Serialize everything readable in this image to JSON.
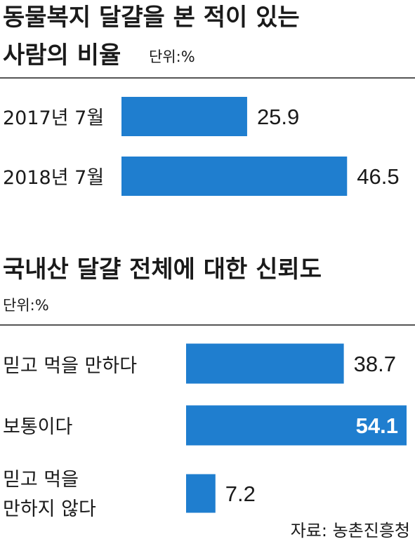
{
  "colors": {
    "bar": "#1f7ecf",
    "rule": "#555555",
    "text": "#1a1a1a"
  },
  "chart_data": [
    {
      "type": "bar",
      "orientation": "horizontal",
      "title_line1": "동물복지 달걀을 본 적이 있는",
      "title_line2": "사람의 비율",
      "unit": "단위:%",
      "categories": [
        "2017년 7월",
        "2018년 7월"
      ],
      "values": [
        25.9,
        46.5
      ],
      "value_labels": [
        "25.9",
        "46.5"
      ],
      "xlim": [
        0,
        55
      ]
    },
    {
      "type": "bar",
      "orientation": "horizontal",
      "title_line1": "국내산 달걀 전체에 대한 신뢰도",
      "unit": "단위:%",
      "categories": [
        [
          "믿고 먹을 만하다"
        ],
        [
          "보통이다"
        ],
        [
          "믿고 먹을",
          "만하지 않다"
        ]
      ],
      "values": [
        38.7,
        54.1,
        7.2
      ],
      "value_labels": [
        "38.7",
        "54.1",
        "7.2"
      ],
      "xlim": [
        0,
        54.1
      ]
    }
  ],
  "source": "자료: 농촌진흥청"
}
